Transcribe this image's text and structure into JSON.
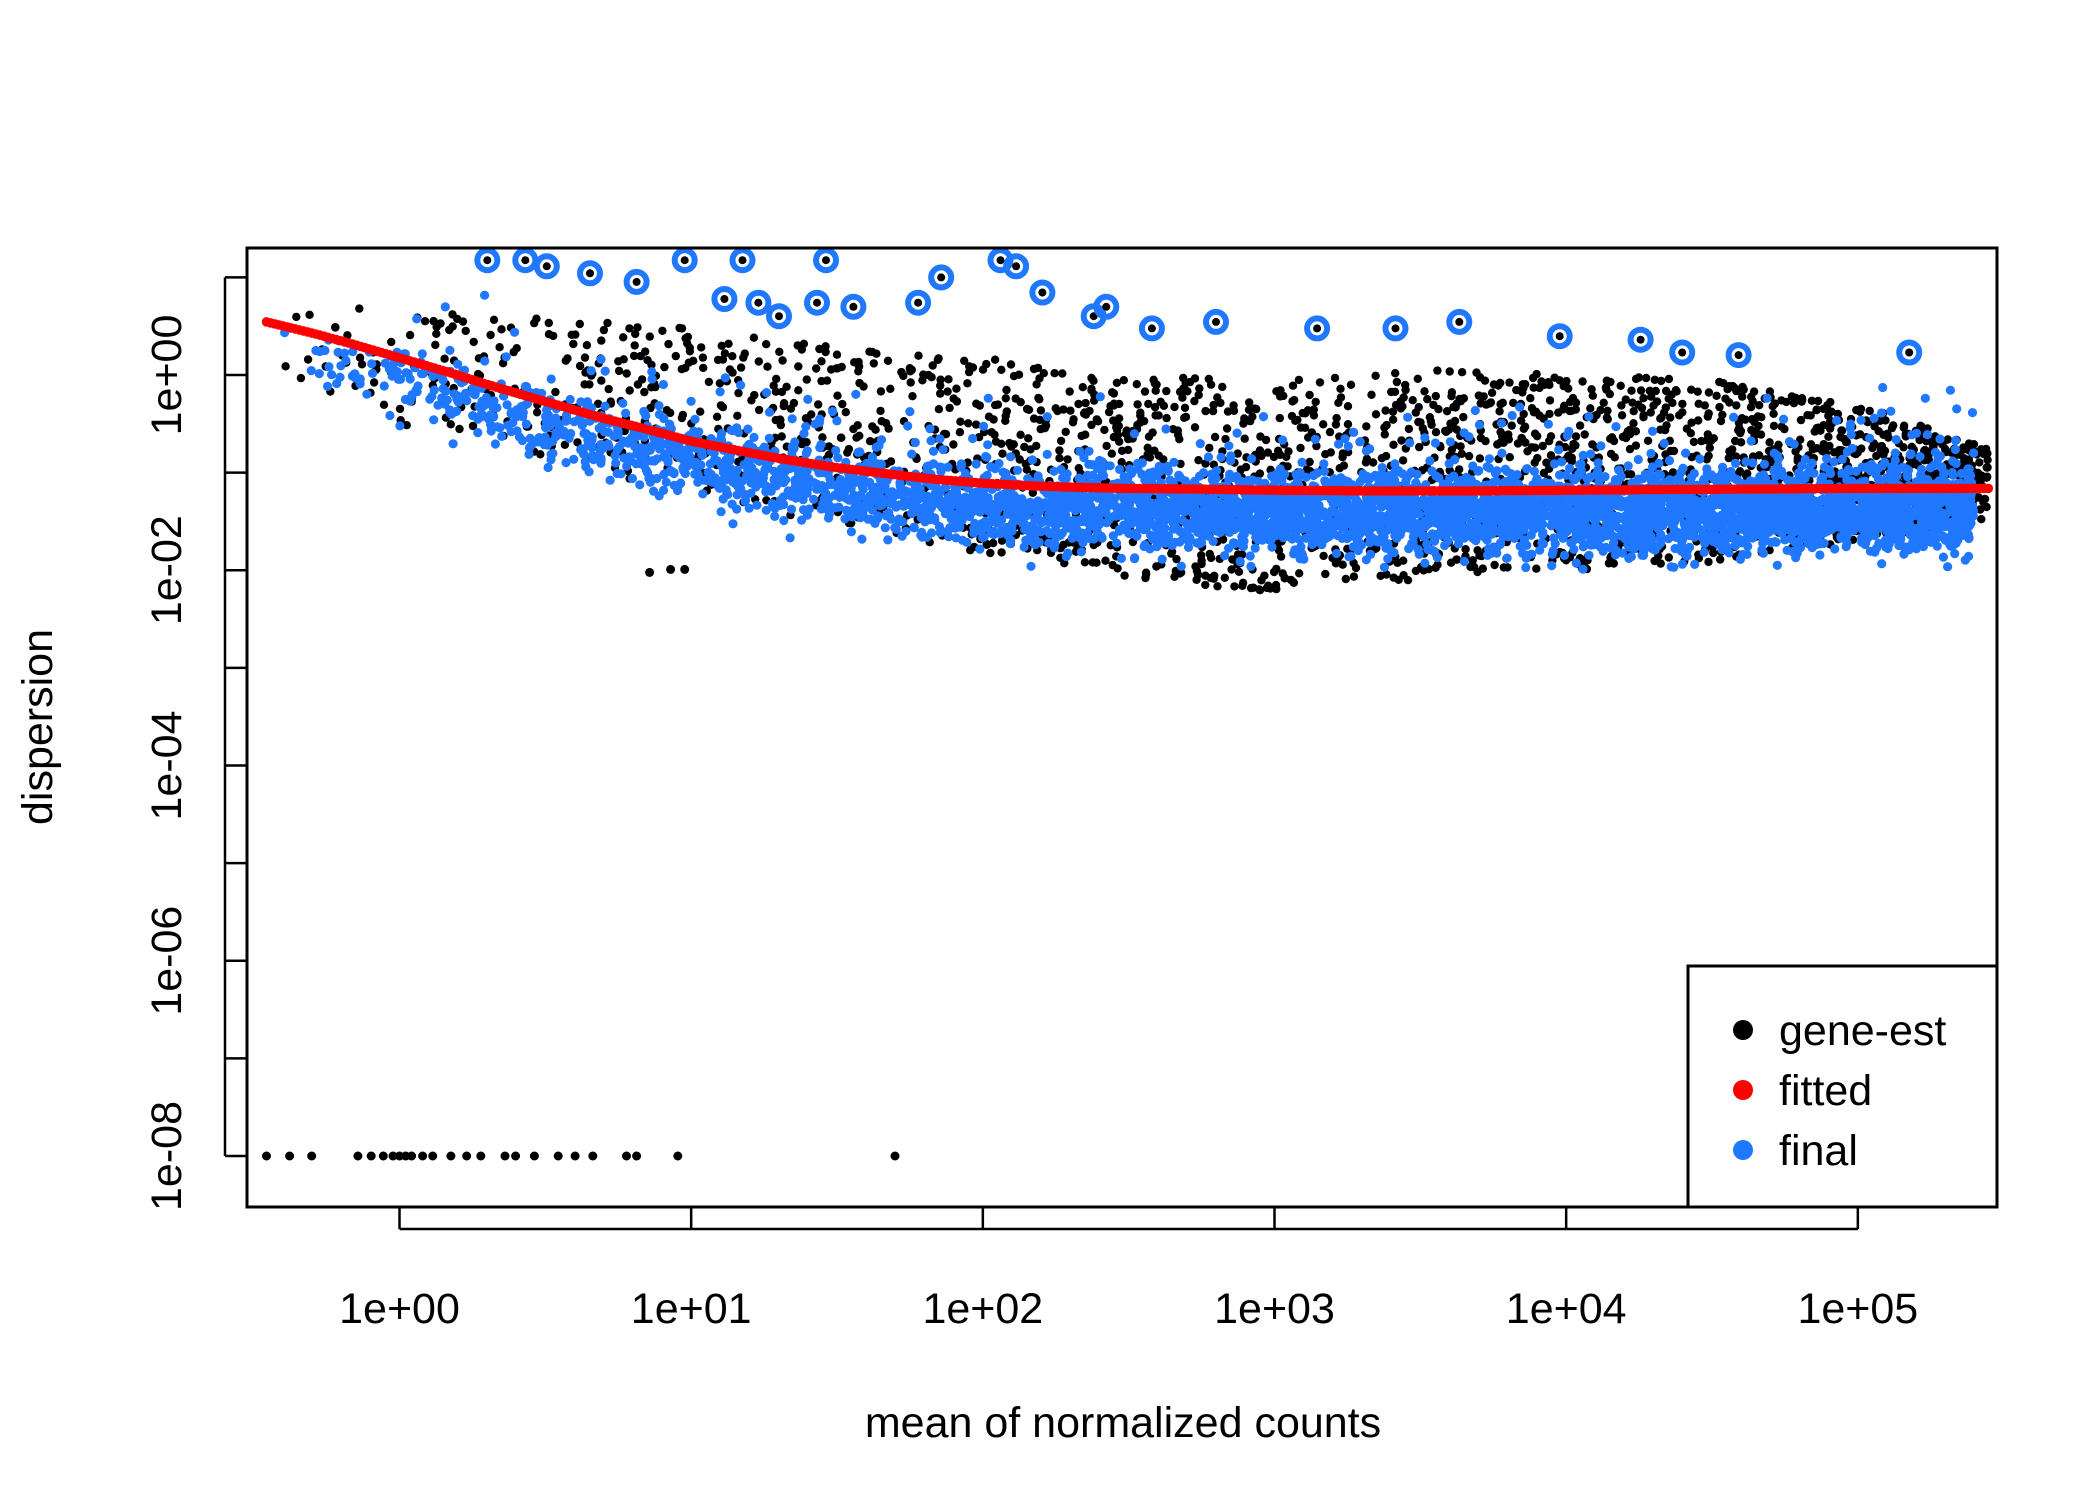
{
  "chart_data": {
    "type": "scatter",
    "title": "",
    "xlabel": "mean of normalized counts",
    "ylabel": "dispersion",
    "x_scale": "log10",
    "y_scale": "log10",
    "xlim": [
      0.3,
      300000
    ],
    "ylim": [
      3e-09,
      20
    ],
    "x_ticks": [
      {
        "value": 1,
        "label": "1e+00"
      },
      {
        "value": 10,
        "label": "1e+01"
      },
      {
        "value": 100,
        "label": "1e+02"
      },
      {
        "value": 1000,
        "label": "1e+03"
      },
      {
        "value": 10000,
        "label": "1e+04"
      },
      {
        "value": 100000,
        "label": "1e+05"
      }
    ],
    "y_ticks": [
      {
        "value": 1e-08,
        "label": "1e-08"
      },
      {
        "value": 1e-07,
        "label": ""
      },
      {
        "value": 1e-06,
        "label": "1e-06"
      },
      {
        "value": 1e-05,
        "label": ""
      },
      {
        "value": 0.0001,
        "label": "1e-04"
      },
      {
        "value": 0.001,
        "label": ""
      },
      {
        "value": 0.01,
        "label": "1e-02"
      },
      {
        "value": 0.1,
        "label": ""
      },
      {
        "value": 1,
        "label": "1e+00"
      },
      {
        "value": 10,
        "label": ""
      }
    ],
    "grid": false,
    "legend_position": "bottom-right",
    "colors": {
      "gene_est": "#000000",
      "fitted": "#ff0000",
      "final": "#1f78ff",
      "outlier_ring": "#1f78ff"
    },
    "legend": [
      {
        "label": "gene-est",
        "color": "#000000"
      },
      {
        "label": "fitted",
        "color": "#ff0000"
      },
      {
        "label": "final",
        "color": "#1f78ff"
      }
    ],
    "fitted_curve": {
      "x": [
        0.35,
        0.5,
        0.7,
        1,
        1.5,
        2,
        3,
        5,
        7,
        10,
        15,
        20,
        30,
        50,
        70,
        100,
        150,
        200,
        300,
        500,
        700,
        1000,
        2000,
        5000,
        10000,
        20000,
        50000,
        100000,
        200000,
        280000
      ],
      "y": [
        3.5,
        2.7,
        2.05,
        1.5,
        1.05,
        0.8,
        0.56,
        0.36,
        0.28,
        0.21,
        0.165,
        0.14,
        0.115,
        0.095,
        0.085,
        0.078,
        0.073,
        0.071,
        0.069,
        0.068,
        0.067,
        0.066,
        0.065,
        0.065,
        0.066,
        0.067,
        0.068,
        0.069,
        0.069,
        0.069
      ]
    },
    "series": [
      {
        "name": "gene-est",
        "role": "gene-wise estimates (black points)",
        "cloud_summary": {
          "x": [
            0.4,
            1,
            3,
            10,
            30,
            100,
            300,
            1000,
            3000,
            10000,
            30000,
            100000,
            250000
          ],
          "y_upper": [
            5,
            5,
            4,
            3,
            2,
            1.5,
            1,
            0.9,
            1.2,
            1,
            0.9,
            0.5,
            0.2
          ],
          "y_lower": [
            0.8,
            0.3,
            0.15,
            0.06,
            0.03,
            0.015,
            0.008,
            0.006,
            0.008,
            0.01,
            0.012,
            0.02,
            0.03
          ]
        },
        "zero_dispersion_points_x": [
          0.35,
          0.42,
          0.5,
          0.72,
          0.8,
          0.88,
          0.95,
          1.0,
          1.05,
          1.1,
          1.2,
          1.3,
          1.5,
          1.7,
          1.9,
          2.3,
          2.5,
          2.9,
          3.5,
          4.0,
          4.6,
          6.0,
          6.5,
          9.0,
          50.0
        ],
        "zero_dispersion_y": 1e-08,
        "isolated_points": [
          {
            "x": 7.2,
            "y": 0.0095
          },
          {
            "x": 8.5,
            "y": 0.0102
          },
          {
            "x": 9.5,
            "y": 0.0102
          }
        ]
      },
      {
        "name": "final",
        "role": "final shrunken estimates (blue points)"
      }
    ],
    "outliers_circled": [
      {
        "x": 2.0,
        "y": 15
      },
      {
        "x": 2.7,
        "y": 15
      },
      {
        "x": 3.2,
        "y": 13
      },
      {
        "x": 4.5,
        "y": 11
      },
      {
        "x": 6.5,
        "y": 9
      },
      {
        "x": 9.5,
        "y": 15
      },
      {
        "x": 15,
        "y": 15
      },
      {
        "x": 29,
        "y": 15
      },
      {
        "x": 13,
        "y": 6
      },
      {
        "x": 17,
        "y": 5.5
      },
      {
        "x": 20,
        "y": 4
      },
      {
        "x": 27,
        "y": 5.5
      },
      {
        "x": 36,
        "y": 5
      },
      {
        "x": 60,
        "y": 5.5
      },
      {
        "x": 72,
        "y": 10
      },
      {
        "x": 115,
        "y": 15
      },
      {
        "x": 130,
        "y": 13
      },
      {
        "x": 160,
        "y": 7
      },
      {
        "x": 240,
        "y": 4
      },
      {
        "x": 265,
        "y": 5
      },
      {
        "x": 380,
        "y": 3
      },
      {
        "x": 630,
        "y": 3.5
      },
      {
        "x": 1400,
        "y": 3
      },
      {
        "x": 2600,
        "y": 3
      },
      {
        "x": 4300,
        "y": 3.5
      },
      {
        "x": 9500,
        "y": 2.5
      },
      {
        "x": 18000,
        "y": 2.3
      },
      {
        "x": 25000,
        "y": 1.7
      },
      {
        "x": 39000,
        "y": 1.6
      },
      {
        "x": 150000,
        "y": 1.7
      }
    ]
  }
}
